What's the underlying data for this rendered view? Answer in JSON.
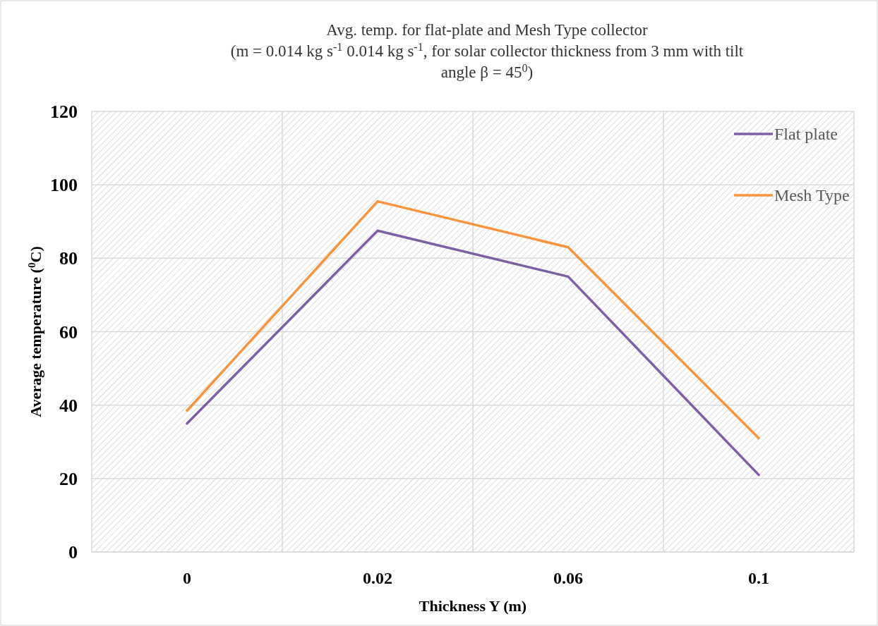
{
  "chart_data": {
    "type": "line",
    "title": "Avg. temp. for flat-plate and Mesh Type collector\n(m = 0.014 kg s$^{-1}$ 0.014 kg s$^{-1}$, for solar collector thickness from 3 mm with tilt\nangle β = 45$^{0}$)",
    "xlabel": "Thickness Y (m)",
    "ylabel": "Average temperature ($^{0}$C)",
    "categories": [
      "0",
      "0.02",
      "0.06",
      "0.1"
    ],
    "series": [
      {
        "name": "Flat  plate",
        "color": "#7e5fa6",
        "values": [
          35,
          87.5,
          75,
          21
        ]
      },
      {
        "name": "Mesh Type",
        "color": "#f7943d",
        "values": [
          38.5,
          95.5,
          83,
          31
        ]
      }
    ],
    "ylim": [
      0,
      120
    ],
    "yticks": [
      0,
      20,
      40,
      60,
      80,
      100,
      120
    ],
    "grid": true,
    "legend": "top right",
    "marker": "none",
    "line_style": "solid"
  }
}
